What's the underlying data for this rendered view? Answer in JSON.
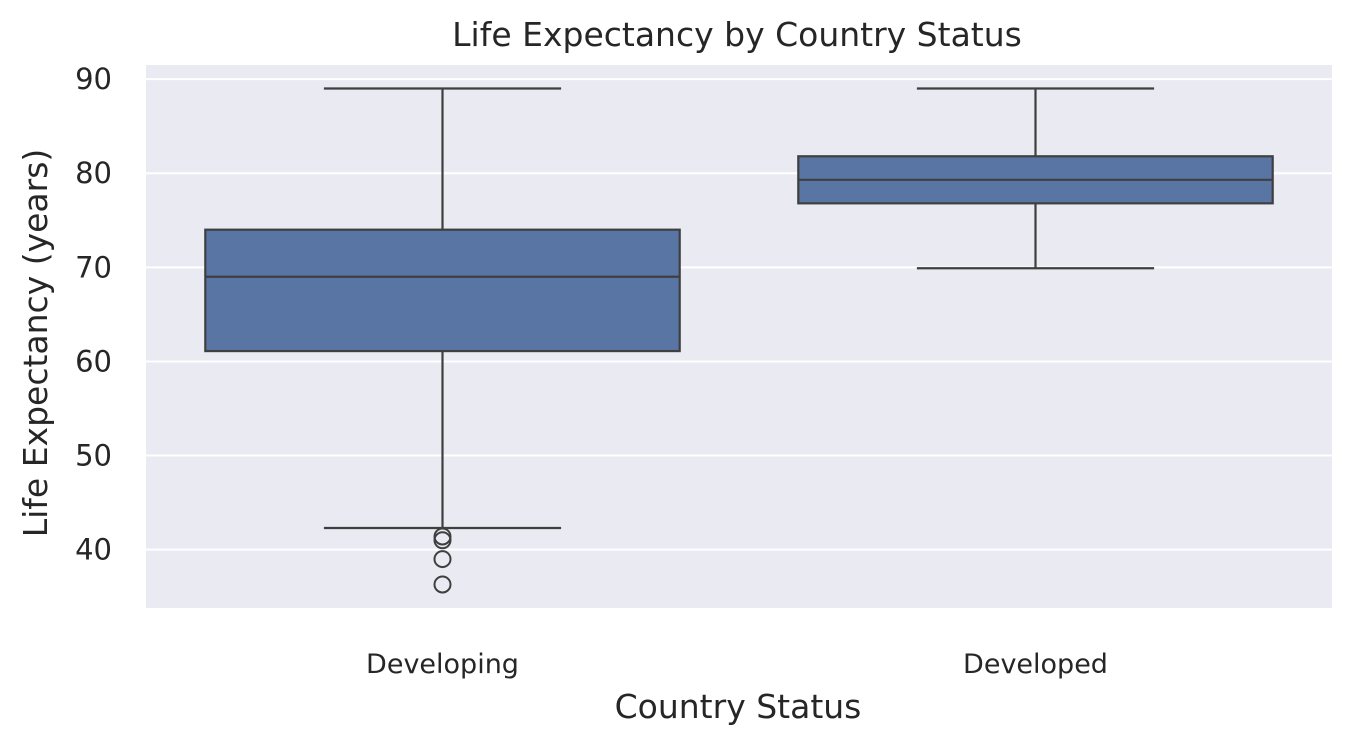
{
  "chart_data": {
    "type": "box",
    "title": "Life Expectancy by Country Status",
    "xlabel": "Country Status",
    "ylabel": "Life Expectancy (years)",
    "ylim": [
      33.8,
      91.5
    ],
    "yticks": [
      40,
      50,
      60,
      70,
      80,
      90
    ],
    "grid": true,
    "colors": {
      "background": "#eaeaf2",
      "box_fill": "#5875a4",
      "line": "#3f3f3f",
      "grid": "#ffffff"
    },
    "categories": [
      "Developing",
      "Developed"
    ],
    "boxes": [
      {
        "category": "Developing",
        "whisker_low": 42.3,
        "q1": 61.1,
        "median": 69.0,
        "q3": 74.0,
        "whisker_high": 89.0,
        "outliers": [
          41.4,
          41.0,
          39.0,
          36.3
        ]
      },
      {
        "category": "Developed",
        "whisker_low": 69.9,
        "q1": 76.8,
        "median": 79.3,
        "q3": 81.8,
        "whisker_high": 89.0,
        "outliers": []
      }
    ]
  }
}
